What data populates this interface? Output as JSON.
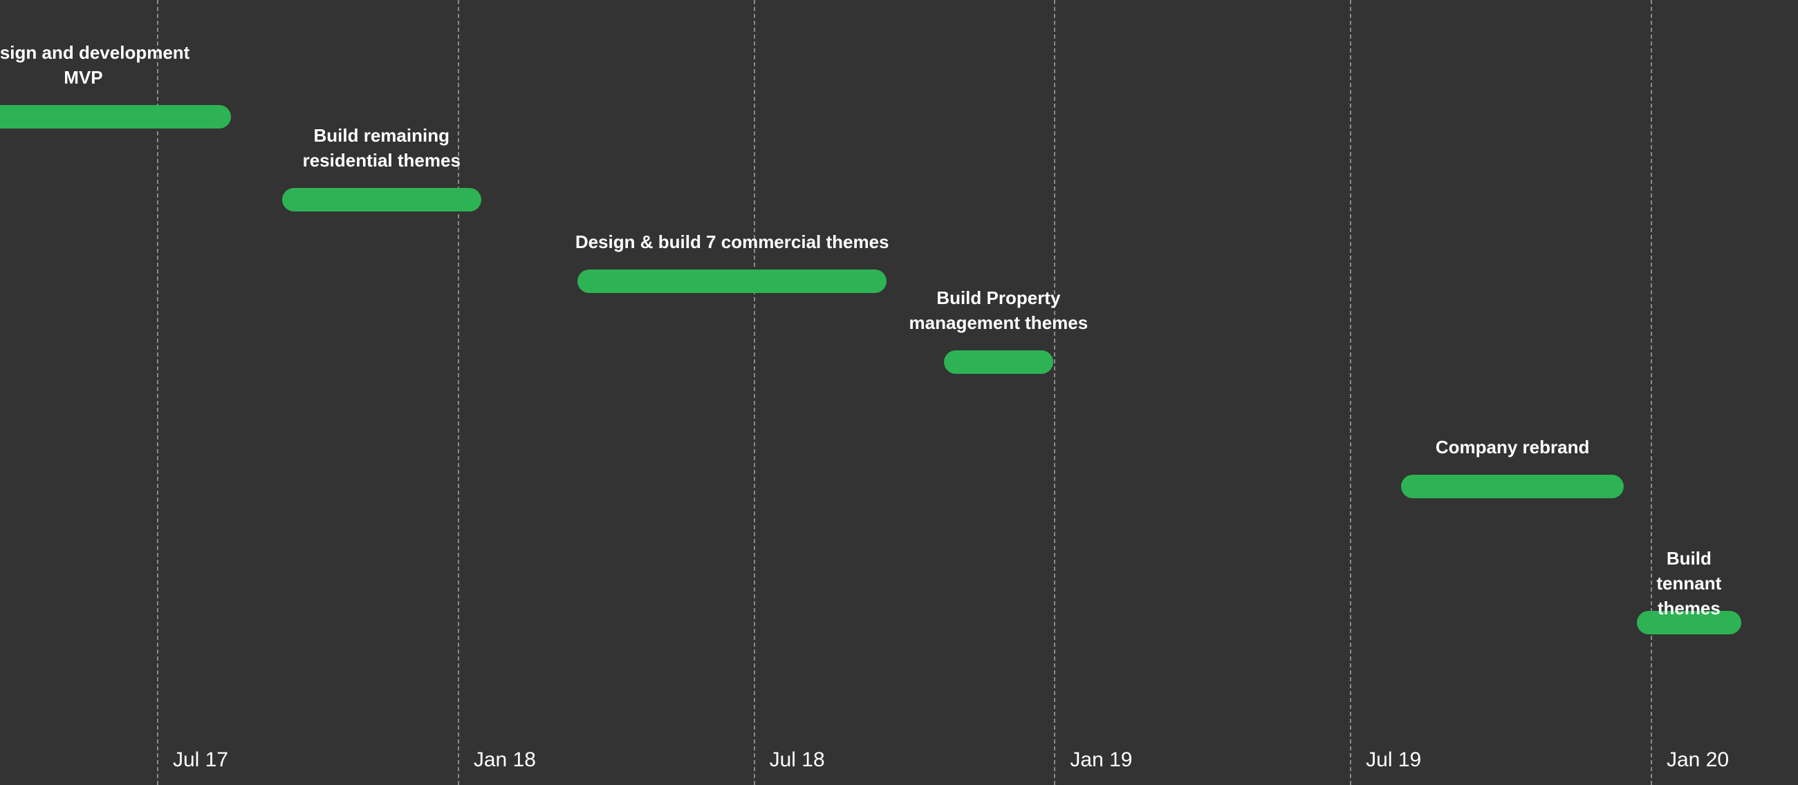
{
  "chart_data": {
    "type": "gantt",
    "x_axis_ticks": [
      {
        "label": "Jul 17",
        "date": "2017-07-01"
      },
      {
        "label": "Jan 18",
        "date": "2018-01-01"
      },
      {
        "label": "Jul 18",
        "date": "2018-07-01"
      },
      {
        "label": "Jan 19",
        "date": "2019-01-01"
      },
      {
        "label": "Jul 19",
        "date": "2019-07-01"
      },
      {
        "label": "Jan 20",
        "date": "2020-01-01"
      }
    ],
    "grid": "vertical dashed lines at ticks",
    "tasks": [
      {
        "name": "Design and development\nMVP",
        "start": "2017-02-15",
        "end": "2017-08-15"
      },
      {
        "name": "Build remaining\nresidential themes",
        "start": "2017-09-15",
        "end": "2018-01-15"
      },
      {
        "name": "Design & build 7 commercial themes",
        "start": "2018-03-15",
        "end": "2018-09-20"
      },
      {
        "name": "Build Property\nmanagement themes",
        "start": "2018-10-25",
        "end": "2018-12-31"
      },
      {
        "name": "Company rebrand",
        "start": "2019-08-01",
        "end": "2019-12-15"
      },
      {
        "name": "Build tennant\nthemes",
        "start": "2019-12-23",
        "end": "2020-02-25"
      }
    ]
  },
  "colors": {
    "background": "#333333",
    "bar": "#2db354",
    "text": "#ffffff",
    "grid": "#8a8a8a"
  }
}
